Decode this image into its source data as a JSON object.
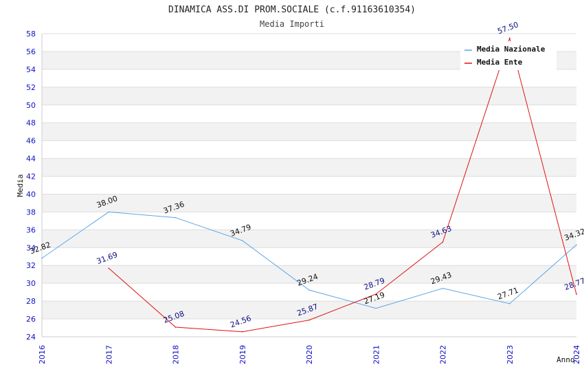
{
  "chart_data": {
    "type": "line",
    "title": "DINAMICA ASS.DI PROM.SOCIALE (c.f.91163610354)",
    "subtitle": "Media Importi",
    "xlabel": "Anno",
    "ylabel": "Media",
    "categories": [
      "2016",
      "2017",
      "2018",
      "2019",
      "2020",
      "2021",
      "2022",
      "2023",
      "2024"
    ],
    "ylim": [
      24,
      58
    ],
    "ytick_step": 2,
    "grid": true,
    "legend_position": "top-right",
    "series": [
      {
        "name": "Media Nazionale",
        "color": "#5aa5e6",
        "label_color": "#111111",
        "values": [
          32.82,
          38.0,
          37.36,
          34.79,
          29.24,
          27.19,
          29.43,
          27.71,
          34.32
        ],
        "labels": [
          "32.82",
          "38.00",
          "37.36",
          "34.79",
          "29.24",
          "27.19",
          "29.43",
          "27.71",
          "34.32"
        ]
      },
      {
        "name": "Media Ente",
        "color": "#e01010",
        "label_color": "#101080",
        "values": [
          null,
          31.69,
          25.08,
          24.56,
          25.87,
          28.79,
          34.63,
          57.5,
          28.77
        ],
        "labels": [
          null,
          "31.69",
          "25.08",
          "24.56",
          "25.87",
          "28.79",
          "34.63",
          "57.50",
          "28.77"
        ]
      }
    ]
  }
}
